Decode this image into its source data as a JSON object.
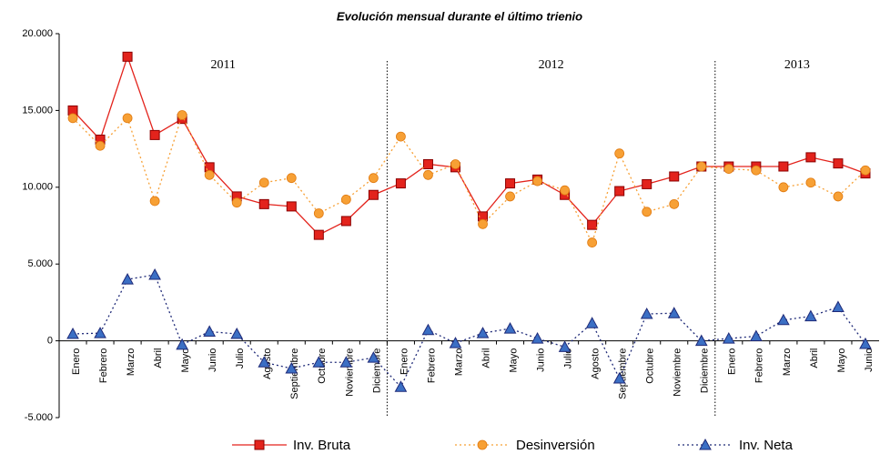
{
  "chart_data": {
    "type": "line",
    "title": "Evolución mensual durante el último trienio",
    "categories": [
      "Enero",
      "Febrero",
      "Marzo",
      "Abril",
      "Mayo",
      "Junio",
      "Julio",
      "Agosto",
      "Septiembre",
      "Octubre",
      "Noviembre",
      "Diciembre",
      "Enero",
      "Febrero",
      "Marzo",
      "Abril",
      "Mayo",
      "Junio",
      "Julio",
      "Agosto",
      "Septiembre",
      "Octubre",
      "Noviembre",
      "Diciembre",
      "Enero",
      "Febrero",
      "Marzo",
      "Abril",
      "Mayo",
      "Junio"
    ],
    "groups": [
      {
        "label": "2011",
        "count": 12
      },
      {
        "label": "2012",
        "count": 12
      },
      {
        "label": "2013",
        "count": 6
      }
    ],
    "series": [
      {
        "name": "Inv. Bruta",
        "color": "#e3231c",
        "marker": "square",
        "dash": false,
        "values": [
          15000,
          13100,
          18500,
          13400,
          14450,
          11300,
          9400,
          8900,
          8750,
          6900,
          7800,
          9500,
          10250,
          11500,
          11300,
          8100,
          10250,
          10500,
          9500,
          7550,
          9750,
          10200,
          10700,
          11350,
          11350,
          11350,
          11350,
          11950,
          11550,
          10900
        ]
      },
      {
        "name": "Desinversión",
        "color": "#f7a035",
        "marker": "circle",
        "dash": true,
        "values": [
          14500,
          12700,
          14500,
          9100,
          14700,
          10800,
          9000,
          10300,
          10600,
          8300,
          9200,
          10600,
          13300,
          10800,
          11500,
          7600,
          9400,
          10400,
          9800,
          6400,
          12200,
          8400,
          8900,
          11350,
          11200,
          11100,
          10000,
          10300,
          9400,
          11100
        ]
      },
      {
        "name": "Inv. Neta",
        "color": "#1f2a78",
        "marker": "triangle",
        "dash": true,
        "values": [
          450,
          500,
          4000,
          4300,
          -250,
          600,
          450,
          -1400,
          -1800,
          -1400,
          -1400,
          -1100,
          -3000,
          700,
          -150,
          500,
          800,
          150,
          -400,
          1150,
          -2450,
          1750,
          1800,
          0,
          150,
          300,
          1350,
          1600,
          2200,
          -200
        ]
      }
    ],
    "ylim": [
      -5000,
      20000
    ],
    "yticks": [
      {
        "value": -5000,
        "label": "-5.000"
      },
      0,
      {
        "value": 5000,
        "label": "5.000"
      },
      {
        "value": 10000,
        "label": "10.000"
      },
      {
        "value": 15000,
        "label": "15.000"
      },
      {
        "value": 20000,
        "label": "20.000"
      }
    ]
  }
}
